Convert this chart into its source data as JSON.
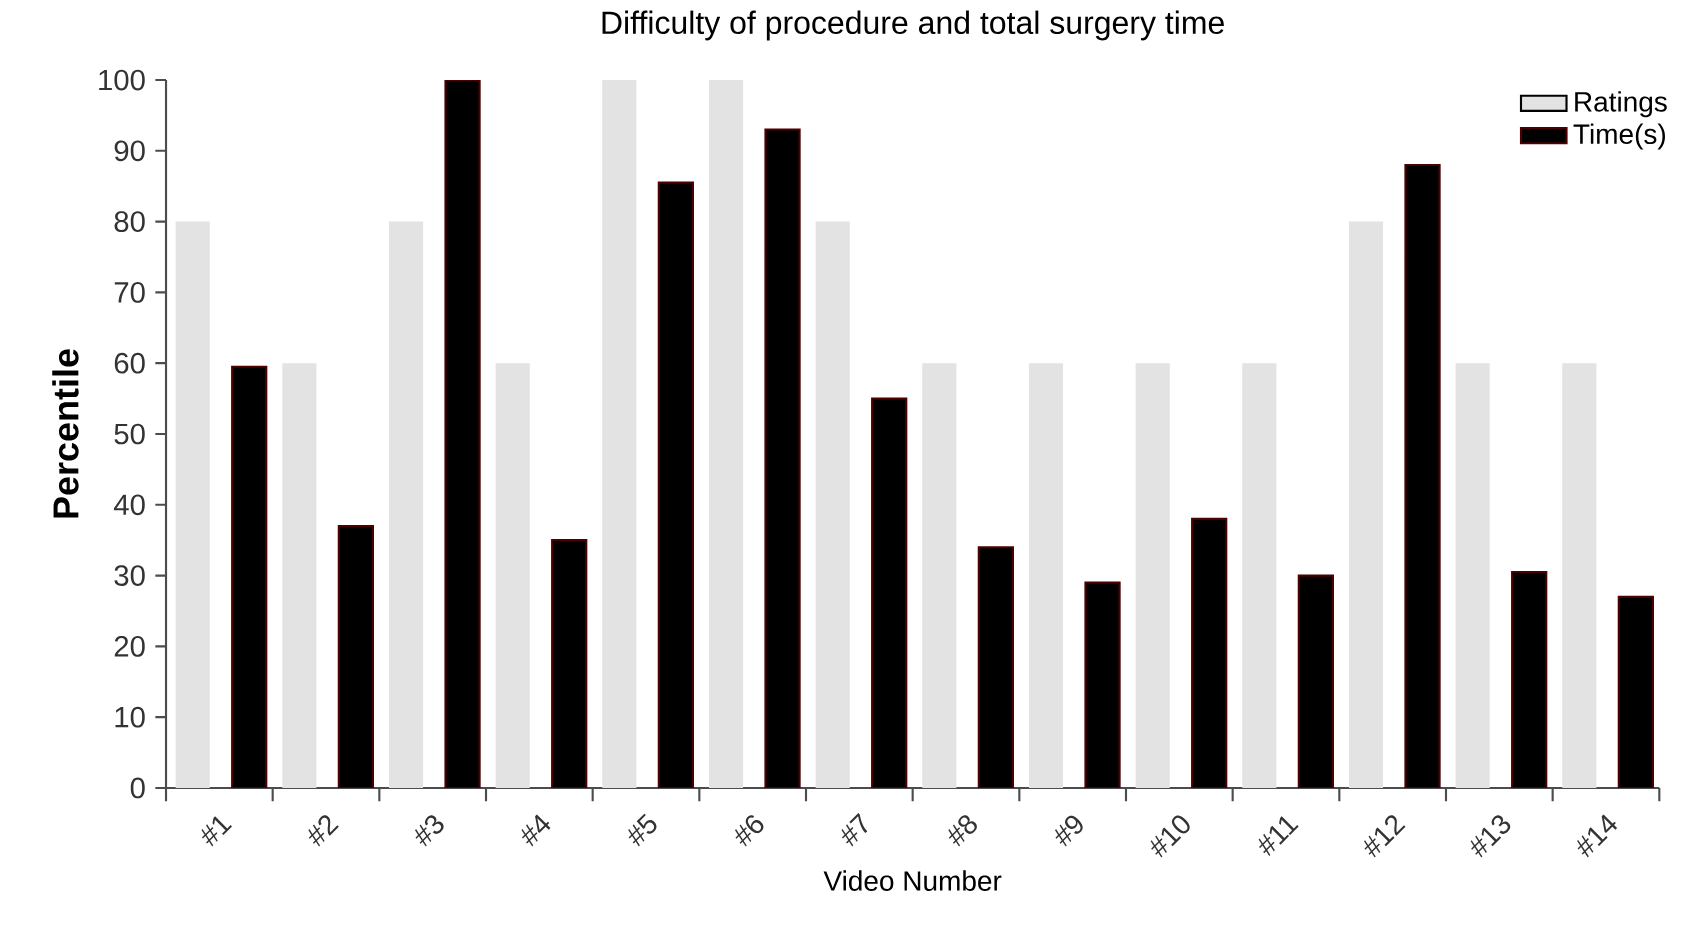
{
  "chart_data": {
    "type": "bar",
    "title": "Difficulty of procedure and total surgery time",
    "xlabel": "Video Number",
    "ylabel": "Percentile",
    "categories": [
      "#1",
      "#2",
      "#3",
      "#4",
      "#5",
      "#6",
      "#7",
      "#8",
      "#9",
      "#10",
      "#11",
      "#12",
      "#13",
      "#14"
    ],
    "series": [
      {
        "name": "Ratings",
        "color": "#e3e3e3",
        "values": [
          80,
          60,
          80,
          60,
          100,
          100,
          80,
          60,
          60,
          60,
          60,
          80,
          60,
          60
        ]
      },
      {
        "name": "Time(s)",
        "color": "#000000",
        "values": [
          59.5,
          37,
          100,
          35,
          85.5,
          93,
          55,
          34,
          29,
          38,
          30,
          88,
          30.5,
          27
        ]
      }
    ],
    "ylim": [
      0,
      100
    ],
    "yticks": [
      0,
      10,
      20,
      30,
      40,
      50,
      60,
      70,
      80,
      90,
      100
    ],
    "legend": "top right"
  }
}
